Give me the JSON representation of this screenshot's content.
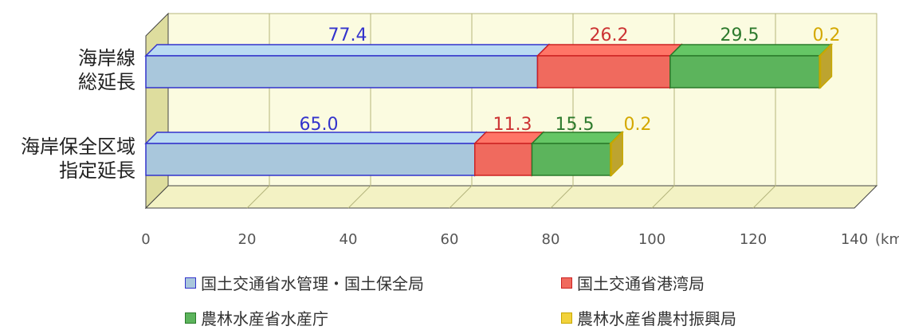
{
  "chart_data": {
    "type": "bar",
    "orientation": "horizontal",
    "stacked": true,
    "three_d": true,
    "categories": [
      "海岸線\n総延長",
      "海岸保全区域\n指定延長"
    ],
    "series": [
      {
        "name": "国土交通省水管理・国土保全局",
        "values": [
          77.4,
          65.0
        ],
        "labels": [
          "77.4",
          "65.0"
        ],
        "color": "#a9c7dc",
        "stroke": "#3333cc",
        "label_color": "#3333cc"
      },
      {
        "name": "国土交通省港湾局",
        "values": [
          26.2,
          11.3
        ],
        "labels": [
          "26.2",
          "11.3"
        ],
        "color": "#f06a5e",
        "stroke": "#cc2222",
        "label_color": "#cc3333"
      },
      {
        "name": "農林水産省水産庁",
        "values": [
          29.5,
          15.5
        ],
        "labels": [
          "29.5",
          "15.5"
        ],
        "color": "#5cb45c",
        "stroke": "#2a7a2a",
        "label_color": "#2d7a2d"
      },
      {
        "name": "農林水産省農村振興局",
        "values": [
          0.2,
          0.2
        ],
        "labels": [
          "0.2",
          "0.2"
        ],
        "color": "#f2d23c",
        "stroke": "#c8a800",
        "label_color": "#d4a800"
      }
    ],
    "xlim": [
      0,
      140
    ],
    "x_ticks": [
      "0",
      "20",
      "40",
      "60",
      "80",
      "100",
      "120",
      "140"
    ],
    "unit_label": "(km)",
    "grid": true,
    "legend_position": "bottom",
    "colors": {
      "floor": "#f3f2c4",
      "wall": "#fbfbe0",
      "side": "#dedd9e",
      "grid": "#b4b47a"
    }
  }
}
